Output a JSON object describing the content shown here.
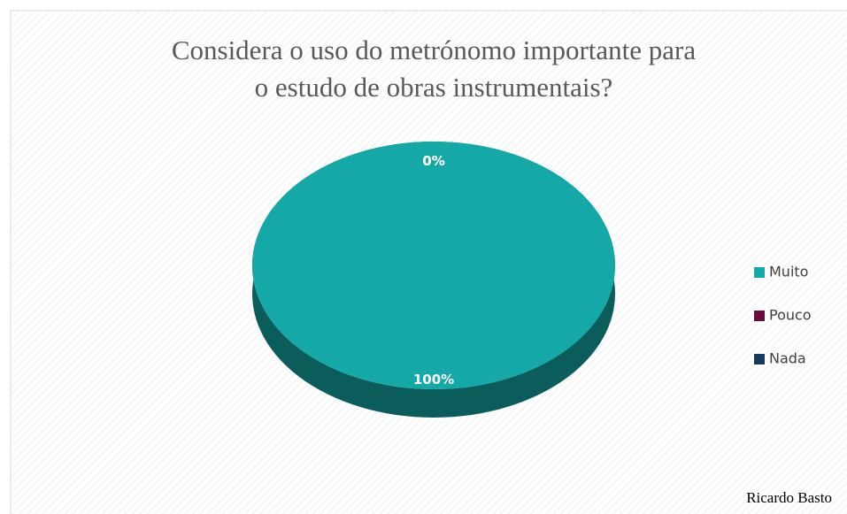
{
  "chart_data": {
    "type": "pie",
    "title": "Considera o uso do metrónomo importante para o estudo de obras instrumentais?",
    "categories": [
      "Muito",
      "Pouco",
      "Nada"
    ],
    "values": [
      100,
      0,
      0
    ],
    "value_labels": [
      "100%",
      "0%",
      "0%"
    ],
    "colors": [
      "#14a9a6",
      "#6b0d3a",
      "#163a5c"
    ],
    "legend": "right",
    "author": "Ricardo Basto"
  }
}
